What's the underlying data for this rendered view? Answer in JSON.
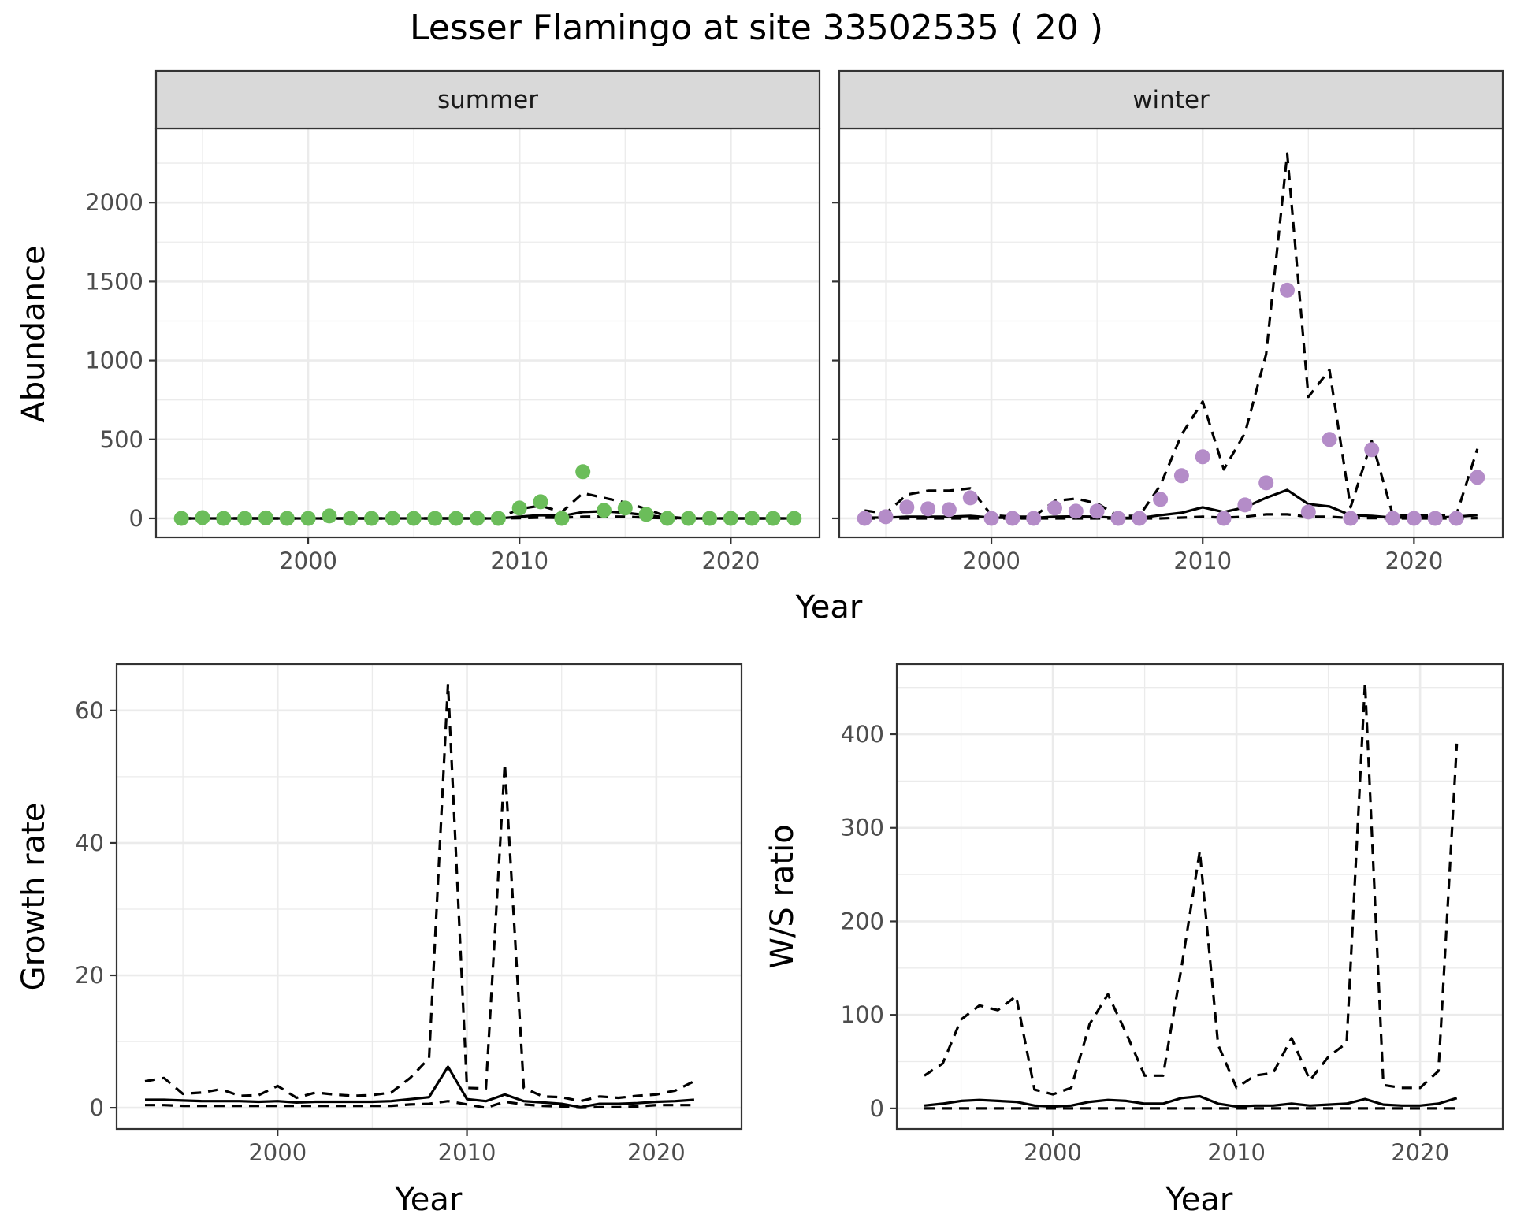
{
  "title": "Lesser Flamingo at site 33502535 ( 20 )",
  "colors": {
    "summer_points": "#6BBD5A",
    "winter_points": "#B48CC8",
    "lines": "#000000",
    "strip_fill": "#D9D9D9",
    "grid": "#EBEBEB"
  },
  "chart_data": [
    {
      "id": "abundance-summer",
      "type": "scatter",
      "facet_label": "summer",
      "xlabel": "",
      "ylabel": "Abundance",
      "xlim": [
        1992.8,
        2024.2
      ],
      "ylim": [
        -120,
        2470
      ],
      "x_ticks": [
        2000,
        2010,
        2020
      ],
      "y_ticks": [
        0,
        500,
        1000,
        1500,
        2000
      ],
      "grid": true,
      "point_color": "#6BBD5A",
      "x": [
        1994,
        1995,
        1996,
        1997,
        1998,
        1999,
        2000,
        2001,
        2002,
        2003,
        2004,
        2005,
        2006,
        2007,
        2008,
        2009,
        2010,
        2011,
        2012,
        2013,
        2014,
        2015,
        2016,
        2017,
        2018,
        2019,
        2020,
        2021,
        2022,
        2023
      ],
      "points": [
        0,
        5,
        0,
        0,
        3,
        0,
        0,
        15,
        0,
        0,
        0,
        0,
        0,
        0,
        0,
        0,
        65,
        105,
        0,
        295,
        50,
        65,
        25,
        0,
        0,
        0,
        0,
        0,
        0,
        0
      ],
      "mean": [
        0,
        0,
        0,
        0,
        0,
        0,
        0,
        0,
        0,
        0,
        0,
        0,
        0,
        0,
        0,
        0,
        10,
        20,
        15,
        40,
        45,
        35,
        20,
        5,
        0,
        0,
        0,
        0,
        0,
        0
      ],
      "upper": [
        0,
        0,
        0,
        0,
        0,
        0,
        0,
        0,
        0,
        0,
        0,
        0,
        0,
        0,
        0,
        0,
        60,
        80,
        40,
        160,
        130,
        100,
        60,
        10,
        0,
        0,
        0,
        0,
        0,
        0
      ],
      "lower": [
        0,
        0,
        0,
        0,
        0,
        0,
        0,
        0,
        0,
        0,
        0,
        0,
        0,
        0,
        0,
        0,
        2,
        5,
        4,
        10,
        12,
        10,
        5,
        1,
        0,
        0,
        0,
        0,
        0,
        0
      ]
    },
    {
      "id": "abundance-winter",
      "type": "scatter",
      "facet_label": "winter",
      "xlabel": "",
      "ylabel": "",
      "xlim": [
        1992.8,
        2024.2
      ],
      "ylim": [
        -120,
        2470
      ],
      "x_ticks": [
        2000,
        2010,
        2020
      ],
      "y_ticks": [
        0,
        500,
        1000,
        1500,
        2000
      ],
      "grid": true,
      "point_color": "#B48CC8",
      "x": [
        1994,
        1995,
        1996,
        1997,
        1998,
        1999,
        2000,
        2001,
        2002,
        2003,
        2004,
        2005,
        2006,
        2007,
        2008,
        2009,
        2010,
        2011,
        2012,
        2013,
        2014,
        2015,
        2016,
        2017,
        2018,
        2019,
        2020,
        2021,
        2022,
        2023
      ],
      "points": [
        0,
        10,
        70,
        60,
        55,
        130,
        0,
        0,
        0,
        65,
        45,
        45,
        0,
        0,
        120,
        270,
        390,
        0,
        85,
        225,
        1445,
        40,
        500,
        0,
        435,
        0,
        0,
        0,
        0,
        260
      ],
      "mean": [
        5,
        5,
        10,
        10,
        10,
        15,
        5,
        3,
        3,
        10,
        12,
        10,
        3,
        3,
        20,
        35,
        70,
        40,
        70,
        130,
        180,
        90,
        75,
        20,
        15,
        5,
        5,
        5,
        10,
        20
      ],
      "upper": [
        50,
        30,
        150,
        175,
        175,
        190,
        20,
        10,
        10,
        110,
        125,
        95,
        15,
        15,
        210,
        530,
        740,
        310,
        540,
        1040,
        2310,
        770,
        940,
        70,
        490,
        20,
        20,
        20,
        20,
        440
      ],
      "lower": [
        0,
        0,
        0,
        0,
        0,
        0,
        0,
        0,
        0,
        0,
        0,
        0,
        0,
        0,
        0,
        5,
        10,
        5,
        10,
        25,
        25,
        10,
        10,
        2,
        2,
        0,
        0,
        0,
        0,
        2
      ]
    },
    {
      "id": "growth-rate",
      "type": "line",
      "xlabel": "Year",
      "ylabel": "Growth rate",
      "xlim": [
        1991.5,
        2024.5
      ],
      "ylim": [
        -3.2,
        67
      ],
      "x_ticks": [
        2000,
        2010,
        2020
      ],
      "y_ticks": [
        0,
        20,
        40,
        60
      ],
      "grid": true,
      "x": [
        1993,
        1994,
        1995,
        1996,
        1997,
        1998,
        1999,
        2000,
        2001,
        2002,
        2003,
        2004,
        2005,
        2006,
        2007,
        2008,
        2009,
        2010,
        2011,
        2012,
        2013,
        2014,
        2015,
        2016,
        2017,
        2018,
        2019,
        2020,
        2021,
        2022
      ],
      "mean": [
        1.2,
        1.2,
        1.1,
        1.0,
        1.0,
        1.0,
        0.9,
        1.0,
        0.8,
        0.9,
        0.9,
        0.9,
        0.9,
        1.0,
        1.3,
        1.6,
        6.2,
        1.3,
        1.0,
        2.0,
        1.0,
        0.8,
        0.6,
        0.1,
        0.6,
        0.6,
        0.7,
        0.9,
        1.0,
        1.2
      ],
      "upper": [
        4.0,
        4.5,
        2.1,
        2.3,
        2.8,
        1.8,
        1.9,
        3.3,
        1.5,
        2.3,
        2.0,
        1.8,
        1.9,
        2.3,
        4.5,
        7.5,
        64.0,
        3.0,
        2.9,
        52.0,
        3.0,
        1.7,
        1.6,
        1.0,
        1.7,
        1.5,
        1.8,
        2.0,
        2.6,
        4.0
      ],
      "lower": [
        0.4,
        0.4,
        0.3,
        0.3,
        0.3,
        0.3,
        0.3,
        0.3,
        0.3,
        0.3,
        0.3,
        0.3,
        0.3,
        0.3,
        0.5,
        0.6,
        1.0,
        0.5,
        0.0,
        0.9,
        0.5,
        0.3,
        0.2,
        0.0,
        0.1,
        0.1,
        0.2,
        0.4,
        0.4,
        0.4
      ]
    },
    {
      "id": "ws-ratio",
      "type": "line",
      "xlabel": "Year",
      "ylabel": "W/S ratio",
      "xlim": [
        1991.5,
        2024.5
      ],
      "ylim": [
        -22,
        475
      ],
      "x_ticks": [
        2000,
        2010,
        2020
      ],
      "y_ticks": [
        0,
        100,
        200,
        300,
        400
      ],
      "grid": true,
      "x": [
        1993,
        1994,
        1995,
        1996,
        1997,
        1998,
        1999,
        2000,
        2001,
        2002,
        2003,
        2004,
        2005,
        2006,
        2007,
        2008,
        2009,
        2010,
        2011,
        2012,
        2013,
        2014,
        2015,
        2016,
        2017,
        2018,
        2019,
        2020,
        2021,
        2022
      ],
      "mean": [
        3,
        5,
        8,
        9,
        8,
        7,
        3,
        2,
        3,
        7,
        9,
        8,
        5,
        5,
        11,
        13,
        5,
        2,
        3,
        3,
        5,
        3,
        4,
        5,
        10,
        4,
        3,
        3,
        5,
        11
      ],
      "upper": [
        35,
        48,
        95,
        110,
        105,
        120,
        20,
        15,
        22,
        90,
        122,
        80,
        35,
        35,
        150,
        275,
        68,
        22,
        35,
        38,
        75,
        30,
        55,
        70,
        455,
        25,
        22,
        22,
        40,
        390
      ],
      "lower": [
        0,
        0,
        0,
        0,
        0,
        0,
        0,
        0,
        0,
        0,
        0,
        0,
        0,
        0,
        0,
        0,
        0,
        0,
        0,
        0,
        0,
        0,
        0,
        0,
        0,
        0,
        0,
        0,
        0,
        0
      ]
    }
  ],
  "shared_axis": {
    "top_xlabel": "Year"
  }
}
